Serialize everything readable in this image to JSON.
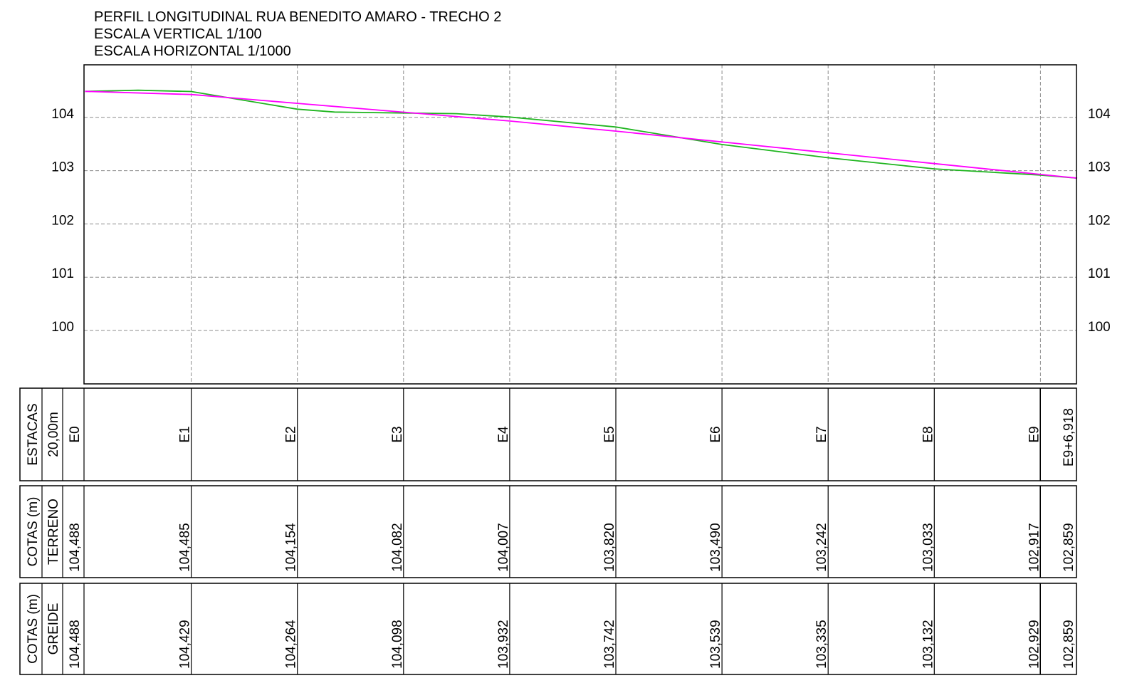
{
  "header": {
    "title": "PERFIL LONGITUDINAL RUA BENEDITO AMARO - TRECHO 2",
    "vertical_scale": "ESCALA VERTICAL 1/100",
    "horizontal_scale": "ESCALA HORIZONTAL  1/1000"
  },
  "colors": {
    "terreno": "#1fb51f",
    "greide": "#ff00ff",
    "grid": "#8c8c8c",
    "frame": "#000000"
  },
  "chart_data": {
    "type": "line",
    "title": "PERFIL LONGITUDINAL RUA BENEDITO AMARO - TRECHO 2",
    "xlabel": "",
    "ylabel": "",
    "x_units": "m",
    "xlim": [
      0,
      186.918
    ],
    "ylim": [
      99,
      105
    ],
    "y_ticks": [
      100,
      101,
      102,
      103,
      104
    ],
    "y_tick_labels": [
      "100",
      "101",
      "102",
      "103",
      "104"
    ],
    "grid": true,
    "stations": [
      "E0",
      "E1",
      "E2",
      "E3",
      "E4",
      "E5",
      "E6",
      "E7",
      "E8",
      "E9",
      "E9+6,918"
    ],
    "x": [
      0,
      20,
      40,
      60,
      80,
      100,
      120,
      140,
      160,
      180,
      186.918
    ],
    "series": [
      {
        "key": "terreno",
        "values": [
          104.488,
          104.485,
          104.154,
          104.082,
          104.007,
          103.82,
          103.49,
          103.242,
          103.033,
          102.917,
          102.859
        ],
        "points": [
          [
            0,
            104.488
          ],
          [
            10,
            104.51
          ],
          [
            20,
            104.485
          ],
          [
            40,
            104.154
          ],
          [
            47,
            104.1
          ],
          [
            60,
            104.082
          ],
          [
            70,
            104.07
          ],
          [
            80,
            104.007
          ],
          [
            100,
            103.82
          ],
          [
            120,
            103.49
          ],
          [
            140,
            103.242
          ],
          [
            160,
            103.033
          ],
          [
            180,
            102.917
          ],
          [
            186.918,
            102.859
          ]
        ]
      },
      {
        "key": "greide",
        "values": [
          104.488,
          104.429,
          104.264,
          104.098,
          103.932,
          103.742,
          103.539,
          103.335,
          103.132,
          102.929,
          102.859
        ]
      }
    ]
  },
  "table": {
    "rows": [
      {
        "label1": "ESTACAS",
        "label2": "20,00m",
        "cells": [
          "E0",
          "E1",
          "E2",
          "E3",
          "E4",
          "E5",
          "E6",
          "E7",
          "E8",
          "E9",
          "E9+6,918"
        ]
      },
      {
        "label1": "COTAS (m)",
        "label2": "TERRENO",
        "cells": [
          "104,488",
          "104,485",
          "104,154",
          "104,082",
          "104,007",
          "103,820",
          "103,490",
          "103,242",
          "103,033",
          "102,917",
          "102,859"
        ]
      },
      {
        "label1": "COTAS (m)",
        "label2": "GREIDE",
        "cells": [
          "104,488",
          "104,429",
          "104,264",
          "104,098",
          "103,932",
          "103,742",
          "103,539",
          "103,335",
          "103,132",
          "102,929",
          "102,859"
        ]
      }
    ]
  }
}
